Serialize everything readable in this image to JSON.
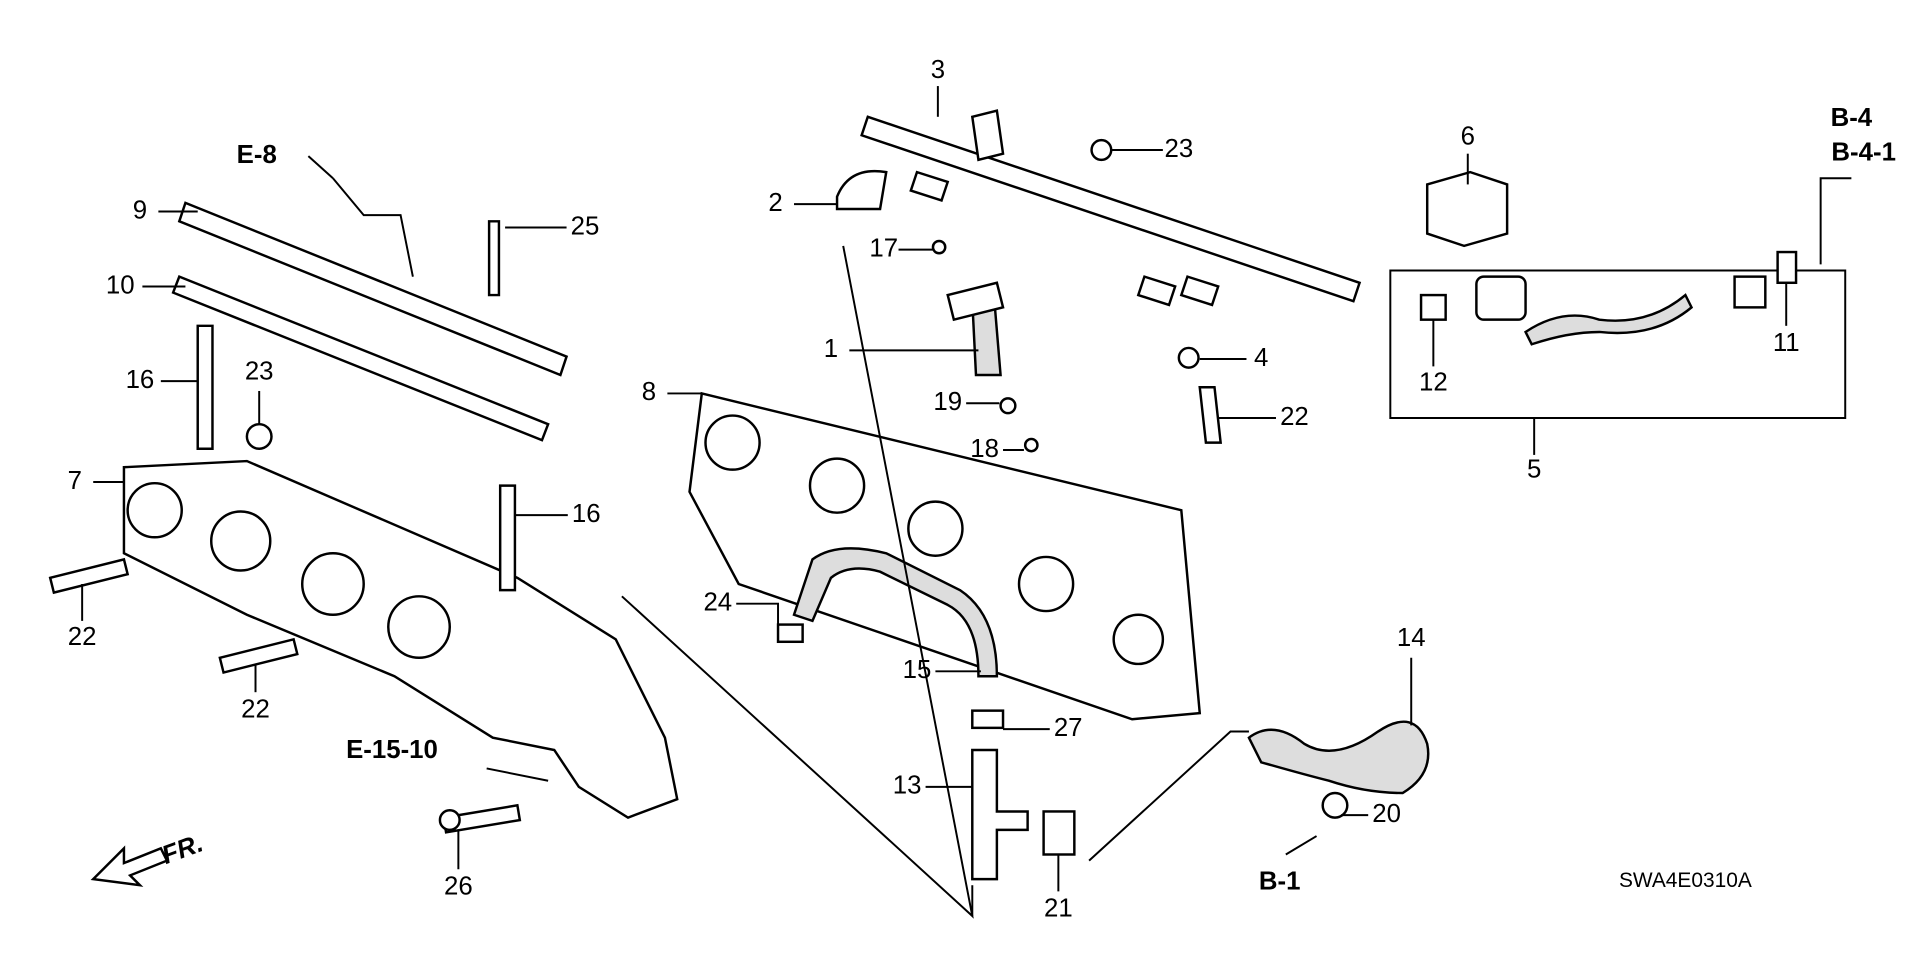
{
  "callouts": [
    "3",
    "2",
    "17",
    "1",
    "19",
    "18",
    "23",
    "6",
    "4",
    "22",
    "12",
    "11",
    "5",
    "9",
    "25",
    "10",
    "16",
    "23",
    "7",
    "16",
    "22",
    "22",
    "8",
    "24",
    "15",
    "27",
    "14",
    "13",
    "20",
    "21",
    "26"
  ],
  "references": [
    "E-8",
    "B-4",
    "B-4-1",
    "E-15-10",
    "B-1"
  ],
  "direction": "FR.",
  "diagram_code": "SWA4E0310A"
}
